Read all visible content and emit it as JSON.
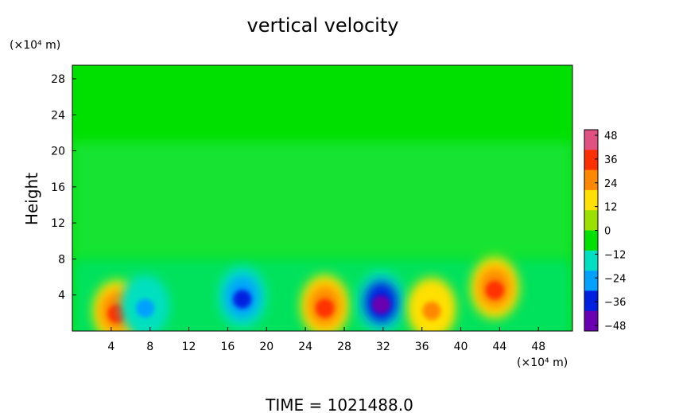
{
  "chart_data": {
    "type": "heatmap",
    "title": "vertical velocity",
    "ylabel": "Height",
    "y_unit": "(×10⁴ m)",
    "x_unit": "(×10⁴ m)",
    "x_ticks": [
      4,
      8,
      12,
      16,
      20,
      24,
      28,
      32,
      36,
      40,
      44,
      48
    ],
    "y_ticks": [
      4,
      8,
      12,
      16,
      20,
      24,
      28
    ],
    "xlim": [
      0,
      51.5
    ],
    "ylim": [
      0,
      29.5
    ],
    "colorbar": {
      "ticks": [
        48,
        36,
        24,
        12,
        0,
        -12,
        -24,
        -36,
        -48
      ],
      "range": [
        -48,
        48
      ],
      "colors": [
        "#e05080",
        "#ff3000",
        "#ff8800",
        "#ffe000",
        "#9ce000",
        "#00e000",
        "#00e0c0",
        "#00a0ff",
        "#0020e0",
        "#6a00b0"
      ]
    },
    "features": [
      {
        "x": 4.6,
        "y": 2.2,
        "value": 30
      },
      {
        "x": 7.5,
        "y": 2.8,
        "value": -26
      },
      {
        "x": 17.5,
        "y": 3.8,
        "value": -38
      },
      {
        "x": 26,
        "y": 2.8,
        "value": 32
      },
      {
        "x": 31.8,
        "y": 3.2,
        "value": -46
      },
      {
        "x": 37,
        "y": 2.5,
        "value": 24
      },
      {
        "x": 43.5,
        "y": 4.8,
        "value": 36
      }
    ],
    "footer": "TIME  =  1021488.0"
  }
}
